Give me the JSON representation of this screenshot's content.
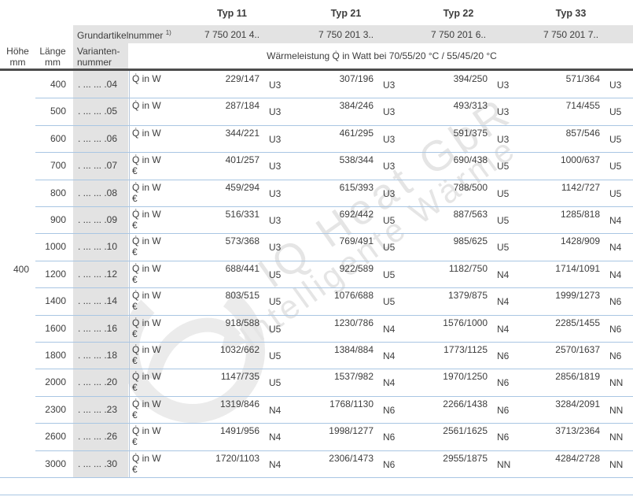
{
  "header": {
    "types": [
      "Typ 11",
      "Typ 21",
      "Typ 22",
      "Typ 33"
    ],
    "grund_label": "Grundartikelnummer",
    "grund_footnote": "1)",
    "grund_numbers": [
      "7 750 201 4..",
      "7 750 201 3..",
      "7 750 201 6..",
      "7 750 201 7.."
    ],
    "hoehe": {
      "label": "Höhe",
      "unit": "mm"
    },
    "laenge": {
      "label": "Länge",
      "unit": "mm"
    },
    "varianten": {
      "line1": "Varianten-",
      "line2": "nummer"
    },
    "leistung": "Wärmeleistung Q̇ in Watt bei 70/55/20 °C / 55/45/20 °C"
  },
  "hoehe_value": "400",
  "labels": {
    "q_in_w": "Q̇ in W",
    "eur": "€"
  },
  "rows": [
    {
      "laenge": "400",
      "variante": ". ... ... .04",
      "eur": false,
      "typ11": {
        "value": "229/147",
        "code": "U3"
      },
      "typ21": {
        "value": "307/196",
        "code": "U3"
      },
      "typ22": {
        "value": "394/250",
        "code": "U3"
      },
      "typ33": {
        "value": "571/364",
        "code": "U3"
      }
    },
    {
      "laenge": "500",
      "variante": ". ... ... .05",
      "eur": false,
      "typ11": {
        "value": "287/184",
        "code": "U3"
      },
      "typ21": {
        "value": "384/246",
        "code": "U3"
      },
      "typ22": {
        "value": "493/313",
        "code": "U3"
      },
      "typ33": {
        "value": "714/455",
        "code": "U5"
      }
    },
    {
      "laenge": "600",
      "variante": ". ... ... .06",
      "eur": false,
      "typ11": {
        "value": "344/221",
        "code": "U3"
      },
      "typ21": {
        "value": "461/295",
        "code": "U3"
      },
      "typ22": {
        "value": "591/375",
        "code": "U3"
      },
      "typ33": {
        "value": "857/546",
        "code": "U5"
      }
    },
    {
      "laenge": "700",
      "variante": ". ... ... .07",
      "eur": true,
      "typ11": {
        "value": "401/257",
        "code": "U3"
      },
      "typ21": {
        "value": "538/344",
        "code": "U3"
      },
      "typ22": {
        "value": "690/438",
        "code": "U5"
      },
      "typ33": {
        "value": "1000/637",
        "code": "U5"
      }
    },
    {
      "laenge": "800",
      "variante": ". ... ... .08",
      "eur": true,
      "typ11": {
        "value": "459/294",
        "code": "U3"
      },
      "typ21": {
        "value": "615/393",
        "code": "U3"
      },
      "typ22": {
        "value": "788/500",
        "code": "U5"
      },
      "typ33": {
        "value": "1142/727",
        "code": "U5"
      }
    },
    {
      "laenge": "900",
      "variante": ". ... ... .09",
      "eur": true,
      "typ11": {
        "value": "516/331",
        "code": "U3"
      },
      "typ21": {
        "value": "692/442",
        "code": "U5"
      },
      "typ22": {
        "value": "887/563",
        "code": "U5"
      },
      "typ33": {
        "value": "1285/818",
        "code": "N4"
      }
    },
    {
      "laenge": "1000",
      "variante": ". ... ... .10",
      "eur": true,
      "typ11": {
        "value": "573/368",
        "code": "U3"
      },
      "typ21": {
        "value": "769/491",
        "code": "U5"
      },
      "typ22": {
        "value": "985/625",
        "code": "U5"
      },
      "typ33": {
        "value": "1428/909",
        "code": "N4"
      }
    },
    {
      "laenge": "1200",
      "variante": ". ... ... .12",
      "eur": true,
      "typ11": {
        "value": "688/441",
        "code": "U5"
      },
      "typ21": {
        "value": "922/589",
        "code": "U5"
      },
      "typ22": {
        "value": "1182/750",
        "code": "N4"
      },
      "typ33": {
        "value": "1714/1091",
        "code": "N4"
      }
    },
    {
      "laenge": "1400",
      "variante": ". ... ... .14",
      "eur": true,
      "typ11": {
        "value": "803/515",
        "code": "U5"
      },
      "typ21": {
        "value": "1076/688",
        "code": "U5"
      },
      "typ22": {
        "value": "1379/875",
        "code": "N4"
      },
      "typ33": {
        "value": "1999/1273",
        "code": "N6"
      }
    },
    {
      "laenge": "1600",
      "variante": ". ... ... .16",
      "eur": true,
      "typ11": {
        "value": "918/588",
        "code": "U5"
      },
      "typ21": {
        "value": "1230/786",
        "code": "N4"
      },
      "typ22": {
        "value": "1576/1000",
        "code": "N4"
      },
      "typ33": {
        "value": "2285/1455",
        "code": "N6"
      }
    },
    {
      "laenge": "1800",
      "variante": ". ... ... .18",
      "eur": true,
      "typ11": {
        "value": "1032/662",
        "code": "U5"
      },
      "typ21": {
        "value": "1384/884",
        "code": "N4"
      },
      "typ22": {
        "value": "1773/1125",
        "code": "N6"
      },
      "typ33": {
        "value": "2570/1637",
        "code": "N6"
      }
    },
    {
      "laenge": "2000",
      "variante": ". ... ... .20",
      "eur": true,
      "typ11": {
        "value": "1147/735",
        "code": "U5"
      },
      "typ21": {
        "value": "1537/982",
        "code": "N4"
      },
      "typ22": {
        "value": "1970/1250",
        "code": "N6"
      },
      "typ33": {
        "value": "2856/1819",
        "code": "NN"
      }
    },
    {
      "laenge": "2300",
      "variante": ". ... ... .23",
      "eur": true,
      "typ11": {
        "value": "1319/846",
        "code": "N4"
      },
      "typ21": {
        "value": "1768/1130",
        "code": "N6"
      },
      "typ22": {
        "value": "2266/1438",
        "code": "N6"
      },
      "typ33": {
        "value": "3284/2091",
        "code": "NN"
      }
    },
    {
      "laenge": "2600",
      "variante": ". ... ... .26",
      "eur": true,
      "typ11": {
        "value": "1491/956",
        "code": "N4"
      },
      "typ21": {
        "value": "1998/1277",
        "code": "N6"
      },
      "typ22": {
        "value": "2561/1625",
        "code": "N6"
      },
      "typ33": {
        "value": "3713/2364",
        "code": "NN"
      }
    },
    {
      "laenge": "3000",
      "variante": ". ... ... .30",
      "eur": true,
      "typ11": {
        "value": "1720/1103",
        "code": "N4"
      },
      "typ21": {
        "value": "2306/1473",
        "code": "N6"
      },
      "typ22": {
        "value": "2955/1875",
        "code": "NN"
      },
      "typ33": {
        "value": "4284/2728",
        "code": "NN"
      }
    }
  ],
  "watermark": {
    "line1": "IQ Heat GbR",
    "line2": "Intelligente Wärme",
    "logo": "circular-swoosh-logo"
  },
  "colors": {
    "text": "#3d3d3d",
    "band_gray": "#e3e3e3",
    "separator_blue": "#a9c6e3",
    "dark_rule": "#4d4d4d",
    "watermark_gray": "#e5e5e5"
  }
}
